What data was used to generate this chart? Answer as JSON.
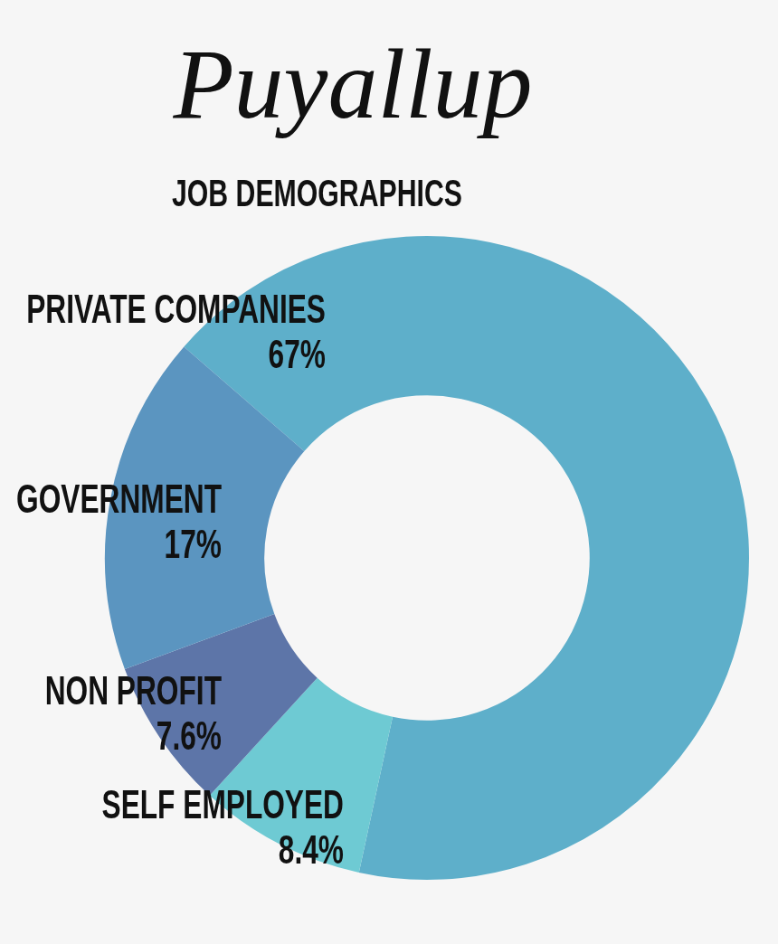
{
  "chart_data": {
    "type": "donut",
    "title": "Puyallup",
    "subtitle": "JOB DEMOGRAPHICS",
    "categories": [
      "PRIVATE COMPANIES",
      "SELF EMPLOYED",
      "NON PROFIT",
      "GOVERNMENT"
    ],
    "values": [
      67,
      8.4,
      7.6,
      17
    ],
    "value_labels": [
      "67%",
      "8.4%",
      "7.6%",
      "17%"
    ],
    "colors": [
      "#5eafca",
      "#6ecad3",
      "#5d75a8",
      "#5b95c0"
    ],
    "legend": false
  }
}
